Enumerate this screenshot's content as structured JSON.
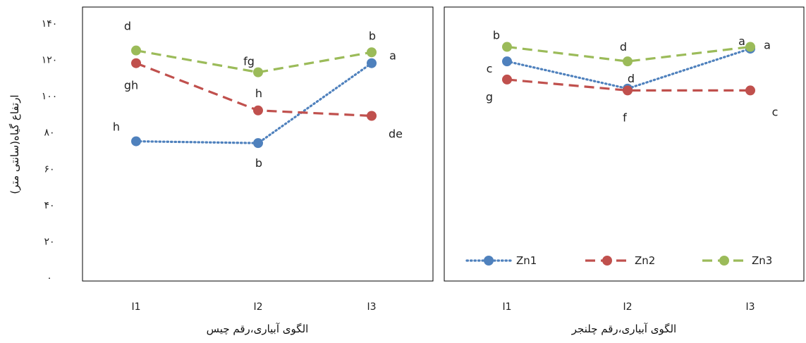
{
  "y_axis": {
    "label": "ارتفاع گیاه(سانتی متر)",
    "ticks": [
      "۰",
      "۲۰",
      "۴۰",
      "۶۰",
      "۸۰",
      "۱۰۰",
      "۱۲۰",
      "۱۴۰"
    ],
    "tick_values": [
      0,
      20,
      40,
      60,
      80,
      100,
      120,
      140
    ]
  },
  "colors": {
    "Zn1": "#4f81bd",
    "Zn2": "#c0504d",
    "Zn3": "#9bbb59"
  },
  "legend": {
    "placement": "bottom",
    "items": [
      {
        "label": "Zn1",
        "key": "Zn1"
      },
      {
        "label": "Zn2",
        "key": "Zn2"
      },
      {
        "label": "Zn3",
        "key": "Zn3"
      }
    ]
  },
  "chart_data": [
    {
      "type": "line",
      "xlabel": "الگوی آبیاری،رقم چیس",
      "ylabel": "ارتفاع گیاه(سانتی متر)",
      "categories": [
        "I1",
        "I2",
        "I3"
      ],
      "ylim": [
        0,
        140
      ],
      "legend": false,
      "series": [
        {
          "name": "Zn1",
          "style": "dotted",
          "values": [
            75,
            74,
            118
          ],
          "letters": [
            "h",
            "b",
            "a"
          ]
        },
        {
          "name": "Zn2",
          "style": "dashed",
          "values": [
            118,
            92,
            89
          ],
          "letters": [
            "gh",
            "h",
            "de"
          ]
        },
        {
          "name": "Zn3",
          "style": "dashed",
          "values": [
            125,
            113,
            124
          ],
          "letters": [
            "d",
            "fg",
            "b"
          ]
        }
      ]
    },
    {
      "type": "line",
      "xlabel": "الگوی آبیاری،رقم چلنجر",
      "ylabel": "",
      "categories": [
        "I1",
        "I2",
        "I3"
      ],
      "ylim": [
        0,
        140
      ],
      "legend": true,
      "series": [
        {
          "name": "Zn1",
          "style": "dotted",
          "values": [
            119,
            104,
            126
          ],
          "letters": [
            "c",
            "d",
            "a"
          ]
        },
        {
          "name": "Zn2",
          "style": "dashed",
          "values": [
            109,
            103,
            103
          ],
          "letters": [
            "g",
            "f",
            "c"
          ]
        },
        {
          "name": "Zn3",
          "style": "dashed",
          "values": [
            127,
            119,
            127
          ],
          "letters": [
            "b",
            "d",
            "a"
          ]
        }
      ]
    }
  ]
}
